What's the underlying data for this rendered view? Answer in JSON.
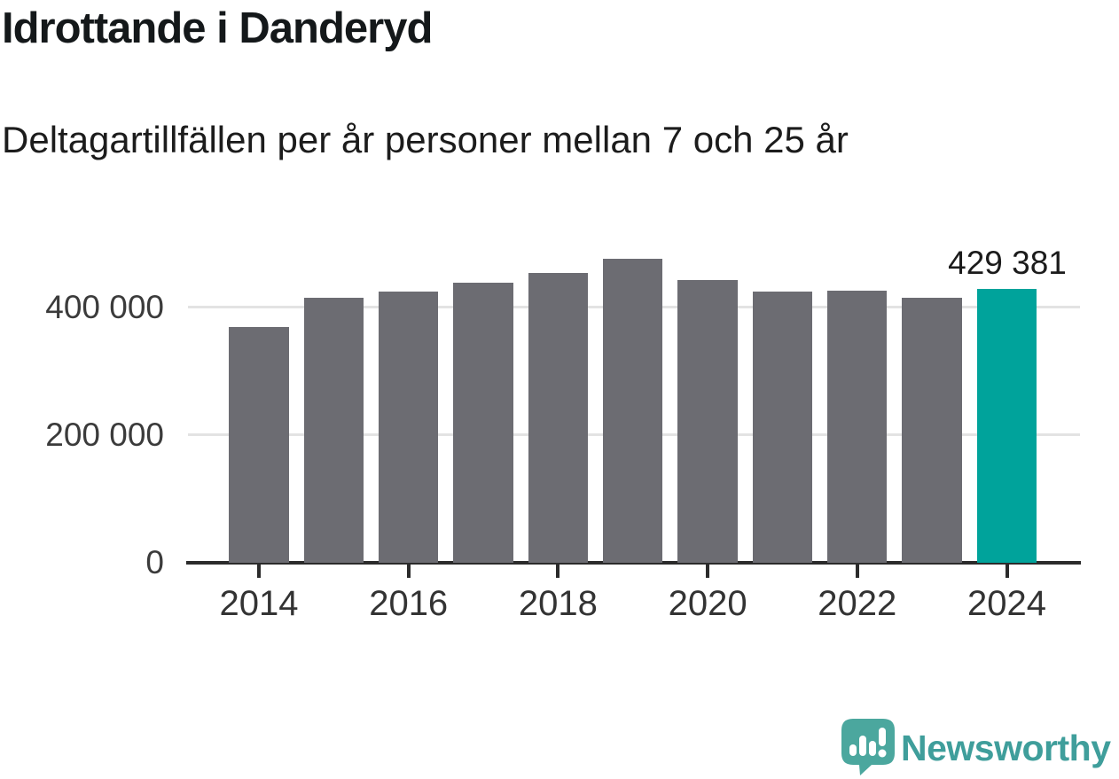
{
  "title": "Idrottande i Danderyd",
  "subtitle": "Deltagartillfällen per år personer mellan 7 och 25 år",
  "chart_data": {
    "type": "bar",
    "categories": [
      2014,
      2015,
      2016,
      2017,
      2018,
      2019,
      2020,
      2021,
      2022,
      2023,
      2024
    ],
    "values": [
      369000,
      415000,
      425000,
      439000,
      454000,
      476000,
      443000,
      425000,
      426000,
      415000,
      429381
    ],
    "title": "Idrottande i Danderyd",
    "subtitle": "Deltagartillfällen per år personer mellan 7 och 25 år",
    "xlabel": "",
    "ylabel": "",
    "ylim": [
      0,
      510000
    ],
    "yticks": [
      0,
      200000,
      400000
    ],
    "ytick_labels": [
      "0",
      "200 000",
      "400 000"
    ],
    "xtick_labels": [
      "2014",
      "2016",
      "2018",
      "2020",
      "2022",
      "2024"
    ],
    "grid": true,
    "legend_position": "none",
    "bar_color": "#6c6c72",
    "highlight_color": "#00a39b",
    "highlight_category": 2024,
    "highlight_value_label": "429 381"
  },
  "branding": {
    "logo_text": "Newsworthy",
    "logo_text_color": "#3f9e9b",
    "logo_icon_color": "#4ba79e",
    "logo_icon": "speech-bubble-bar-chart-icon"
  }
}
